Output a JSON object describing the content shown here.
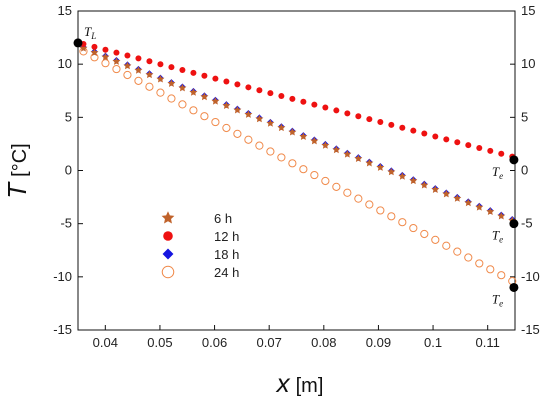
{
  "chart_data": {
    "type": "scatter",
    "xlabel": "x",
    "xunit": "[m]",
    "ylabel": "T",
    "yunit": "[°C]",
    "xlim": [
      0.035,
      0.115
    ],
    "ylim": [
      -15,
      15
    ],
    "xticks": [
      "0.04",
      "0.05",
      "0.06",
      "0.07",
      "0.08",
      "0.09",
      "0.1",
      "0.11"
    ],
    "yticks": [
      "-15",
      "-10",
      "-5",
      "0",
      "5",
      "10",
      "15"
    ],
    "grid": false,
    "legend_position": "center-left",
    "series": [
      {
        "name": "6 h",
        "marker": "star",
        "color": "#c0622a",
        "x_start": 0.036,
        "x_end": 0.1145,
        "y_start": 11.5,
        "y_end": -4.7,
        "n": 40
      },
      {
        "name": "12 h",
        "marker": "circle-filled",
        "color": "#ee1111",
        "x_start": 0.036,
        "x_end": 0.1145,
        "y_start": 11.9,
        "y_end": 1.3,
        "n": 40
      },
      {
        "name": "18 h",
        "marker": "diamond",
        "color": "#1515e0",
        "x_start": 0.036,
        "x_end": 0.1145,
        "y_start": 11.6,
        "y_end": -4.6,
        "n": 40
      },
      {
        "name": "24 h",
        "marker": "circle-open",
        "color": "#f08a4b",
        "x_start": 0.036,
        "x_end": 0.1145,
        "y_start": 11.2,
        "y_end": -10.4,
        "n": 40
      }
    ],
    "annotations": [
      {
        "base": "T",
        "sub": "L",
        "x": 0.035,
        "y": 12
      },
      {
        "base": "T",
        "sub": "e",
        "x": 0.1148,
        "y": 1
      },
      {
        "base": "T",
        "sub": "e",
        "x": 0.1148,
        "y": -5
      },
      {
        "base": "T",
        "sub": "e",
        "x": 0.1148,
        "y": -11
      }
    ]
  }
}
